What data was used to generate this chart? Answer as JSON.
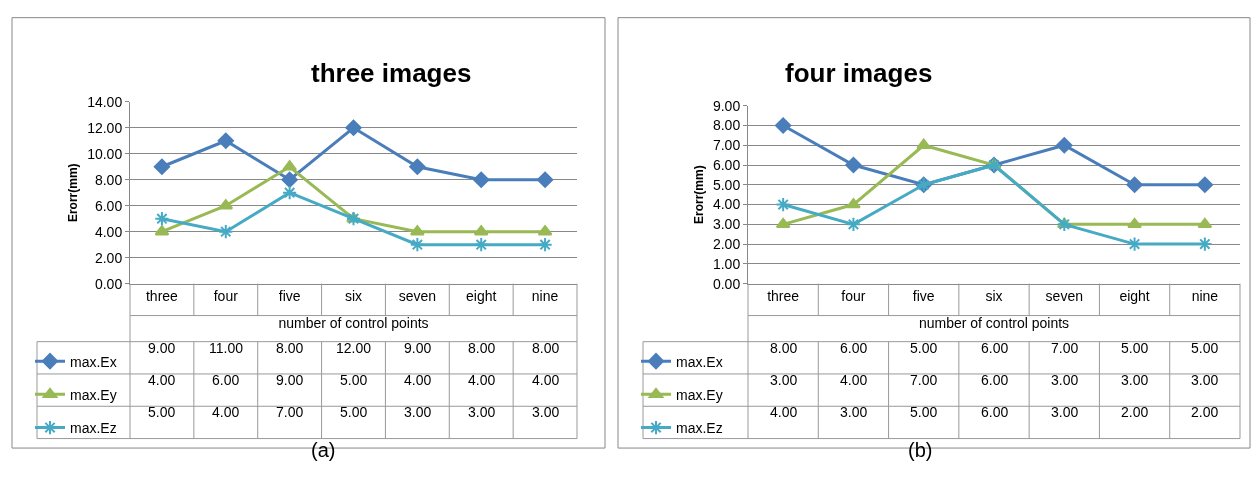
{
  "chart_data": [
    {
      "type": "line",
      "title": "three images",
      "xlabel": "number of control points",
      "ylabel": "Erorr(mm)",
      "categories": [
        "three",
        "four",
        "five",
        "six",
        "seven",
        "eight",
        "nine"
      ],
      "series": [
        {
          "name": "max.Ex",
          "color": "#4a7ebb",
          "marker": "diamond",
          "values": [
            9,
            11,
            8,
            12,
            9,
            8,
            8
          ],
          "value_labels": [
            "9.00",
            "11.00",
            "8.00",
            "12.00",
            "9.00",
            "8.00",
            "8.00"
          ]
        },
        {
          "name": "max.Ey",
          "color": "#98b954",
          "marker": "triangle",
          "values": [
            4,
            6,
            9,
            5,
            4,
            4,
            4
          ],
          "value_labels": [
            "4.00",
            "6.00",
            "9.00",
            "5.00",
            "4.00",
            "4.00",
            "4.00"
          ]
        },
        {
          "name": "max.Ez",
          "color": "#46aac5",
          "marker": "cross",
          "values": [
            5,
            4,
            7,
            5,
            3,
            3,
            3
          ],
          "value_labels": [
            "5.00",
            "4.00",
            "7.00",
            "5.00",
            "3.00",
            "3.00",
            "3.00"
          ]
        }
      ],
      "ylim": [
        0,
        14
      ],
      "yticks": [
        {
          "value": 0,
          "label": "0.00"
        },
        {
          "value": 2,
          "label": "2.00"
        },
        {
          "value": 4,
          "label": "4.00"
        },
        {
          "value": 6,
          "label": "6.00"
        },
        {
          "value": 8,
          "label": "8.00"
        },
        {
          "value": 10,
          "label": "10.00"
        },
        {
          "value": 12,
          "label": "12.00"
        },
        {
          "value": 14,
          "label": "14.00"
        }
      ],
      "grid": "y",
      "legend": "bottom",
      "line_style": "solid",
      "annotations": [
        "(a)"
      ]
    },
    {
      "type": "line",
      "title": "four images",
      "xlabel": "number of control points",
      "ylabel": "Erorr(mm)",
      "categories": [
        "three",
        "four",
        "five",
        "six",
        "seven",
        "eight",
        "nine"
      ],
      "series": [
        {
          "name": "max.Ex",
          "color": "#4a7ebb",
          "marker": "diamond",
          "values": [
            8,
            6,
            5,
            6,
            7,
            5,
            5
          ],
          "value_labels": [
            "8.00",
            "6.00",
            "5.00",
            "6.00",
            "7.00",
            "5.00",
            "5.00"
          ]
        },
        {
          "name": "max.Ey",
          "color": "#98b954",
          "marker": "triangle",
          "values": [
            3,
            4,
            7,
            6,
            3,
            3,
            3
          ],
          "value_labels": [
            "3.00",
            "4.00",
            "7.00",
            "6.00",
            "3.00",
            "3.00",
            "3.00"
          ]
        },
        {
          "name": "max.Ez",
          "color": "#46aac5",
          "marker": "cross",
          "values": [
            4,
            3,
            5,
            6,
            3,
            2,
            2
          ],
          "value_labels": [
            "4.00",
            "3.00",
            "5.00",
            "6.00",
            "3.00",
            "2.00",
            "2.00"
          ]
        }
      ],
      "ylim": [
        0,
        9
      ],
      "yticks": [
        {
          "value": 0,
          "label": "0.00"
        },
        {
          "value": 1,
          "label": "1.00"
        },
        {
          "value": 2,
          "label": "2.00"
        },
        {
          "value": 3,
          "label": "3.00"
        },
        {
          "value": 4,
          "label": "4.00"
        },
        {
          "value": 5,
          "label": "5.00"
        },
        {
          "value": 6,
          "label": "6.00"
        },
        {
          "value": 7,
          "label": "7.00"
        },
        {
          "value": 8,
          "label": "8.00"
        },
        {
          "value": 9,
          "label": "9.00"
        }
      ],
      "grid": "y",
      "legend": "bottom",
      "line_style": "solid",
      "annotations": [
        "(b)"
      ]
    }
  ]
}
